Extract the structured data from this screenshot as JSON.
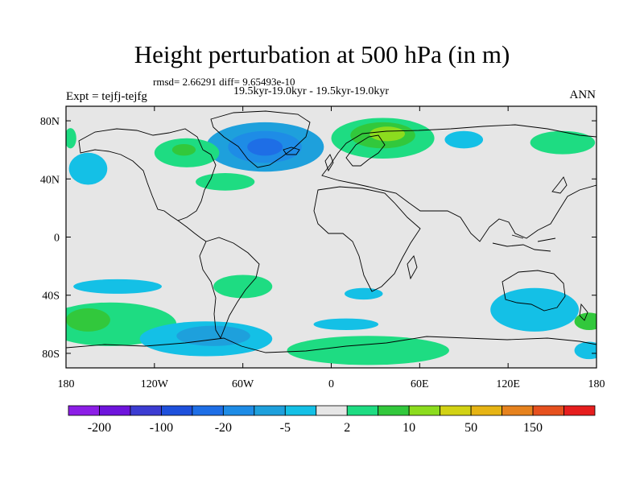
{
  "figure": {
    "title": "Height perturbation at 500 hPa (in m)",
    "stats": "rmsd= 2.66291 diff= 9.65493e-10",
    "experiment": "Expt = tejfj-tejfg",
    "period": "19.5kyr-19.0kyr - 19.5kyr-19.0kyr",
    "season": "ANN"
  },
  "chart_data": {
    "type": "contour_map",
    "projection": "cylindrical_equidistant",
    "lon_range": [
      -180,
      180
    ],
    "lat_range": [
      -90,
      90
    ],
    "x_ticks": [
      {
        "lon": -180,
        "label": "180"
      },
      {
        "lon": -120,
        "label": "120W"
      },
      {
        "lon": -60,
        "label": "60W"
      },
      {
        "lon": 0,
        "label": "0"
      },
      {
        "lon": 60,
        "label": "60E"
      },
      {
        "lon": 120,
        "label": "120E"
      },
      {
        "lon": 180,
        "label": "180"
      }
    ],
    "y_ticks": [
      {
        "lat": 80,
        "label": "80N"
      },
      {
        "lat": 40,
        "label": "40N"
      },
      {
        "lat": 0,
        "label": "0"
      },
      {
        "lat": -40,
        "label": "40S"
      },
      {
        "lat": -80,
        "label": "80S"
      }
    ],
    "colorbar": {
      "colors": [
        "#8c1ee6",
        "#6e14dc",
        "#3c3cd2",
        "#1e50dc",
        "#1e6ee6",
        "#1e8ce6",
        "#1ea0dc",
        "#14c0e6",
        "#e6e6e6",
        "#1edc82",
        "#32c83c",
        "#8cdc1e",
        "#d2d214",
        "#e6b414",
        "#e6821e",
        "#e6501e",
        "#e61e1e"
      ],
      "labels": [
        {
          "after_box": 1,
          "label": "-200"
        },
        {
          "after_box": 3,
          "label": "-100"
        },
        {
          "after_box": 5,
          "label": "-20"
        },
        {
          "after_box": 7,
          "label": "-5"
        },
        {
          "after_box": 9,
          "label": "2"
        },
        {
          "after_box": 11,
          "label": "10"
        },
        {
          "after_box": 13,
          "label": "50"
        },
        {
          "after_box": 15,
          "label": "150"
        }
      ]
    },
    "anomaly_regions": [
      {
        "name": "greenland-low",
        "lon": -45,
        "lat": 62,
        "rlon": 40,
        "rlat": 17,
        "color": "#1ea0dc"
      },
      {
        "name": "greenland-low-core",
        "lon": -45,
        "lat": 62,
        "rlon": 25,
        "rlat": 11,
        "color": "#1e8ce6"
      },
      {
        "name": "greenland-low-center",
        "lon": -45,
        "lat": 62,
        "rlon": 12,
        "rlat": 6,
        "color": "#1e6ee6"
      },
      {
        "name": "scandinavia-high",
        "lon": 35,
        "lat": 68,
        "rlon": 35,
        "rlat": 14,
        "color": "#1edc82"
      },
      {
        "name": "scandinavia-high-core",
        "lon": 35,
        "lat": 70,
        "rlon": 22,
        "rlat": 9,
        "color": "#32c83c"
      },
      {
        "name": "scandinavia-high-center",
        "lon": 38,
        "lat": 71,
        "rlon": 12,
        "rlat": 5,
        "color": "#8cdc1e"
      },
      {
        "name": "north-america-high",
        "lon": -98,
        "lat": 58,
        "rlon": 22,
        "rlat": 10,
        "color": "#1edc82"
      },
      {
        "name": "north-america-high-core",
        "lon": -100,
        "lat": 60,
        "rlon": 8,
        "rlat": 4,
        "color": "#32c83c"
      },
      {
        "name": "east-coast-high",
        "lon": -72,
        "lat": 38,
        "rlon": 20,
        "rlat": 6,
        "color": "#1edc82"
      },
      {
        "name": "north-pacific-low",
        "lon": -165,
        "lat": 47,
        "rlon": 13,
        "rlat": 11,
        "color": "#14c0e6"
      },
      {
        "name": "siberia-low",
        "lon": 90,
        "lat": 67,
        "rlon": 13,
        "rlat": 6,
        "color": "#14c0e6"
      },
      {
        "name": "east-asia-high",
        "lon": 157,
        "lat": 65,
        "rlon": 22,
        "rlat": 8,
        "color": "#1edc82"
      },
      {
        "name": "dateline-east-high",
        "lon": -177,
        "lat": 68,
        "rlon": 4,
        "rlat": 7,
        "color": "#1edc82"
      },
      {
        "name": "southeast-pacific-low",
        "lon": -145,
        "lat": -34,
        "rlon": 30,
        "rlat": 5,
        "color": "#14c0e6"
      },
      {
        "name": "south-america-high",
        "lon": -60,
        "lat": -34,
        "rlon": 20,
        "rlat": 8,
        "color": "#1edc82"
      },
      {
        "name": "south-pacific-high",
        "lon": -150,
        "lat": -60,
        "rlon": 45,
        "rlat": 15,
        "color": "#1edc82"
      },
      {
        "name": "south-pacific-high-core",
        "lon": -165,
        "lat": -57,
        "rlon": 15,
        "rlat": 8,
        "color": "#32c83c"
      },
      {
        "name": "drake-passage-low",
        "lon": -85,
        "lat": -70,
        "rlon": 45,
        "rlat": 12,
        "color": "#14c0e6"
      },
      {
        "name": "drake-passage-low-core",
        "lon": -80,
        "lat": -68,
        "rlon": 25,
        "rlat": 7,
        "color": "#1ea0dc"
      },
      {
        "name": "south-atlantic-low",
        "lon": 22,
        "lat": -39,
        "rlon": 13,
        "rlat": 4,
        "color": "#14c0e6"
      },
      {
        "name": "indian-ocean-low",
        "lon": 10,
        "lat": -60,
        "rlon": 22,
        "rlat": 4,
        "color": "#14c0e6"
      },
      {
        "name": "east-antarctica-high",
        "lon": 25,
        "lat": -78,
        "rlon": 55,
        "rlat": 10,
        "color": "#1edc82"
      },
      {
        "name": "australia-low",
        "lon": 138,
        "lat": -50,
        "rlon": 30,
        "rlat": 15,
        "color": "#14c0e6"
      },
      {
        "name": "east-antarctica-low",
        "lon": 175,
        "lat": -78,
        "rlon": 10,
        "rlat": 6,
        "color": "#14c0e6"
      },
      {
        "name": "dateline-south-high",
        "lon": 175,
        "lat": -58,
        "rlon": 10,
        "rlat": 6,
        "color": "#32c83c"
      }
    ]
  }
}
